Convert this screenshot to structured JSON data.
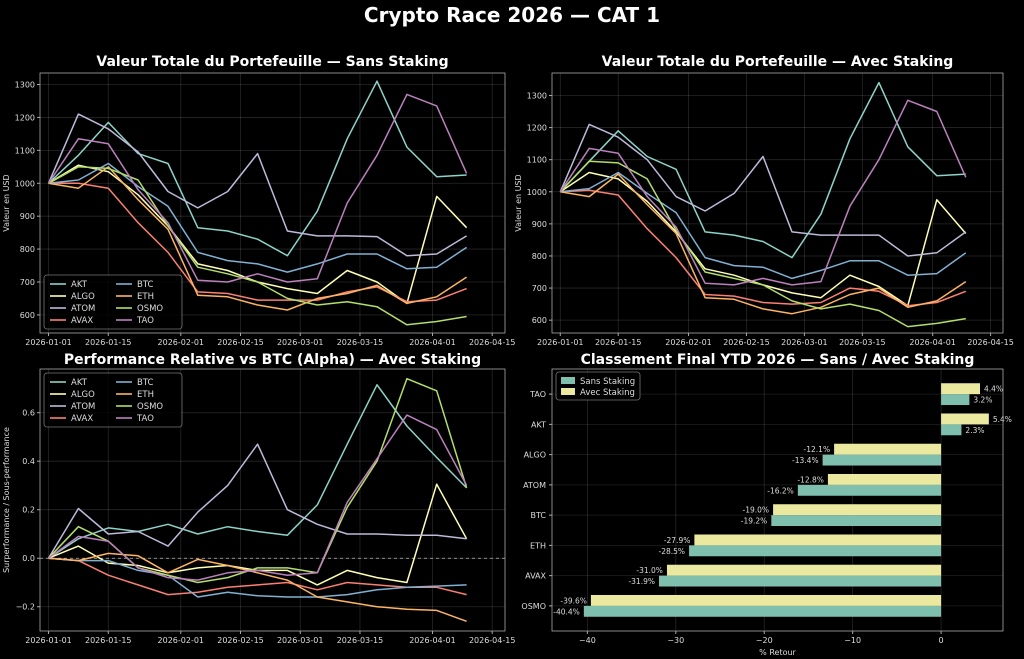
{
  "title": "Crypto Race 2026 — CAT 1",
  "chart_data": [
    {
      "type": "line",
      "title": "Valeur Totale du Portefeuille — Sans Staking",
      "ylabel": "Valeur en USD",
      "xlabel": "",
      "xlim": [
        "2025-12-30",
        "2026-04-18"
      ],
      "ylim": [
        545,
        1335
      ],
      "x_ticks": [
        "2026-01-01",
        "2026-01-15",
        "2026-02-01",
        "2026-02-15",
        "2026-03-01",
        "2026-03-15",
        "2026-04-01",
        "2026-04-15"
      ],
      "y_ticks": [
        600,
        700,
        800,
        900,
        1000,
        1100,
        1200,
        1300
      ],
      "zero_line": false,
      "grid": true,
      "legend": "lower-left",
      "legend_columns": 2,
      "x": [
        "2026-01-01",
        "2026-01-08",
        "2026-01-15",
        "2026-01-22",
        "2026-01-29",
        "2026-02-05",
        "2026-02-12",
        "2026-02-19",
        "2026-02-26",
        "2026-03-05",
        "2026-03-12",
        "2026-03-19",
        "2026-03-26",
        "2026-04-02",
        "2026-04-09",
        "2026-04-16"
      ],
      "series": [
        {
          "name": "AKT",
          "color": "#8dd3c7",
          "values": [
            1000,
            1085,
            1185,
            1090,
            1060,
            865,
            855,
            830,
            780,
            915,
            1135,
            1310,
            1110,
            1020,
            1025,
            null
          ]
        },
        {
          "name": "ALGO",
          "color": "#ffffb3",
          "values": [
            1000,
            1055,
            1035,
            965,
            870,
            755,
            735,
            700,
            680,
            665,
            735,
            700,
            635,
            960,
            865,
            null
          ]
        },
        {
          "name": "ATOM",
          "color": "#bebada",
          "values": [
            1000,
            1210,
            1165,
            1095,
            975,
            925,
            975,
            1090,
            855,
            840,
            840,
            838,
            780,
            785,
            840,
            null
          ]
        },
        {
          "name": "AVAX",
          "color": "#fb8072",
          "values": [
            1000,
            1000,
            985,
            880,
            790,
            670,
            665,
            645,
            645,
            645,
            670,
            685,
            640,
            645,
            680,
            null
          ]
        },
        {
          "name": "BTC",
          "color": "#80b1d3",
          "values": [
            1000,
            1010,
            1060,
            990,
            930,
            790,
            765,
            755,
            730,
            755,
            785,
            785,
            740,
            745,
            805,
            null
          ]
        },
        {
          "name": "ETH",
          "color": "#fdb462",
          "values": [
            1000,
            985,
            1050,
            950,
            860,
            660,
            655,
            630,
            615,
            650,
            665,
            690,
            635,
            655,
            715,
            null
          ]
        },
        {
          "name": "OSMO",
          "color": "#b3de69",
          "values": [
            1000,
            1050,
            1045,
            1010,
            870,
            745,
            725,
            700,
            650,
            630,
            640,
            625,
            570,
            580,
            595,
            null
          ]
        },
        {
          "name": "TAO",
          "color": "#bc80bd",
          "values": [
            1000,
            1135,
            1120,
            980,
            880,
            705,
            700,
            725,
            700,
            710,
            940,
            1085,
            1270,
            1235,
            1030,
            null
          ]
        }
      ]
    },
    {
      "type": "line",
      "title": "Valeur Totale du Portefeuille — Avec Staking",
      "ylabel": "Valeur en USD",
      "xlabel": "",
      "xlim": [
        "2025-12-30",
        "2026-04-18"
      ],
      "ylim": [
        560,
        1370
      ],
      "x_ticks": [
        "2026-01-01",
        "2026-01-15",
        "2026-02-01",
        "2026-02-15",
        "2026-03-01",
        "2026-03-15",
        "2026-04-01",
        "2026-04-15"
      ],
      "y_ticks": [
        600,
        700,
        800,
        900,
        1000,
        1100,
        1200,
        1300
      ],
      "zero_line": false,
      "grid": true,
      "legend": "none",
      "legend_columns": 2,
      "x": [
        "2026-01-01",
        "2026-01-08",
        "2026-01-15",
        "2026-01-22",
        "2026-01-29",
        "2026-02-05",
        "2026-02-12",
        "2026-02-19",
        "2026-02-26",
        "2026-03-05",
        "2026-03-12",
        "2026-03-19",
        "2026-03-26",
        "2026-04-02",
        "2026-04-09",
        "2026-04-16"
      ],
      "series": [
        {
          "name": "AKT",
          "color": "#8dd3c7",
          "values": [
            1000,
            1095,
            1190,
            1110,
            1070,
            875,
            865,
            845,
            795,
            930,
            1165,
            1340,
            1140,
            1050,
            1055,
            null
          ]
        },
        {
          "name": "ALGO",
          "color": "#ffffb3",
          "values": [
            1000,
            1060,
            1040,
            970,
            875,
            760,
            740,
            710,
            685,
            670,
            740,
            705,
            645,
            975,
            870,
            null
          ]
        },
        {
          "name": "ATOM",
          "color": "#bebada",
          "values": [
            1000,
            1210,
            1170,
            1100,
            985,
            940,
            995,
            1110,
            875,
            865,
            865,
            865,
            800,
            810,
            875,
            null
          ]
        },
        {
          "name": "AVAX",
          "color": "#fb8072",
          "values": [
            1000,
            1005,
            990,
            885,
            795,
            680,
            675,
            655,
            650,
            655,
            700,
            690,
            645,
            655,
            690,
            null
          ]
        },
        {
          "name": "BTC",
          "color": "#80b1d3",
          "values": [
            1000,
            1010,
            1060,
            995,
            935,
            795,
            770,
            765,
            730,
            755,
            785,
            785,
            740,
            745,
            810,
            null
          ]
        },
        {
          "name": "ETH",
          "color": "#fdb462",
          "values": [
            1000,
            985,
            1055,
            960,
            870,
            670,
            665,
            635,
            620,
            640,
            680,
            700,
            640,
            660,
            720,
            null
          ]
        },
        {
          "name": "OSMO",
          "color": "#b3de69",
          "values": [
            1000,
            1095,
            1090,
            1040,
            880,
            750,
            730,
            710,
            660,
            635,
            650,
            630,
            580,
            590,
            605,
            null
          ]
        },
        {
          "name": "TAO",
          "color": "#bc80bd",
          "values": [
            1000,
            1135,
            1120,
            985,
            890,
            715,
            710,
            730,
            710,
            720,
            955,
            1100,
            1285,
            1250,
            1045,
            null
          ]
        }
      ]
    },
    {
      "type": "line",
      "title": "Performance Relative vs BTC (Alpha) — Avec Staking",
      "ylabel": "Surperformance / Sous-performance",
      "xlabel": "",
      "xlim": [
        "2025-12-30",
        "2026-04-18"
      ],
      "ylim": [
        -0.3,
        0.78
      ],
      "x_ticks": [
        "2026-01-01",
        "2026-01-15",
        "2026-02-01",
        "2026-02-15",
        "2026-03-01",
        "2026-03-15",
        "2026-04-01",
        "2026-04-15"
      ],
      "y_ticks": [
        -0.2,
        0.0,
        0.2,
        0.4,
        0.6
      ],
      "y_tick_labels": [
        "−0.2",
        "0.0",
        "0.2",
        "0.4",
        "0.6"
      ],
      "zero_line": true,
      "grid": true,
      "legend": "upper-left",
      "legend_columns": 2,
      "x": [
        "2026-01-01",
        "2026-01-08",
        "2026-01-15",
        "2026-01-22",
        "2026-01-29",
        "2026-02-05",
        "2026-02-12",
        "2026-02-19",
        "2026-02-26",
        "2026-03-05",
        "2026-03-12",
        "2026-03-19",
        "2026-03-26",
        "2026-04-02",
        "2026-04-09",
        "2026-04-16"
      ],
      "series": [
        {
          "name": "AKT",
          "color": "#8dd3c7",
          "values": [
            0,
            0.08,
            0.125,
            0.11,
            0.14,
            0.1,
            0.13,
            0.11,
            0.095,
            0.22,
            0.47,
            0.715,
            0.545,
            0.415,
            0.29,
            null
          ]
        },
        {
          "name": "ALGO",
          "color": "#ffffb3",
          "values": [
            0,
            0.05,
            -0.02,
            -0.03,
            -0.06,
            -0.04,
            -0.03,
            -0.05,
            -0.05,
            -0.11,
            -0.05,
            -0.08,
            -0.1,
            0.305,
            0.08,
            null
          ]
        },
        {
          "name": "ATOM",
          "color": "#bebada",
          "values": [
            0,
            0.205,
            0.1,
            0.11,
            0.05,
            0.19,
            0.3,
            0.47,
            0.2,
            0.14,
            0.1,
            0.1,
            0.095,
            0.095,
            0.08,
            null
          ]
        },
        {
          "name": "AVAX",
          "color": "#fb8072",
          "values": [
            0,
            -0.01,
            -0.07,
            -0.11,
            -0.15,
            -0.14,
            -0.12,
            -0.11,
            -0.1,
            -0.13,
            -0.1,
            -0.11,
            -0.12,
            -0.12,
            -0.15,
            null
          ]
        },
        {
          "name": "BTC",
          "color": "#80b1d3",
          "values": [
            0,
            -0.01,
            -0.01,
            -0.05,
            -0.07,
            -0.16,
            -0.14,
            -0.155,
            -0.16,
            -0.16,
            -0.15,
            -0.13,
            -0.12,
            -0.115,
            -0.11,
            null
          ]
        },
        {
          "name": "ETH",
          "color": "#fdb462",
          "values": [
            0,
            -0.01,
            0.02,
            0.01,
            -0.06,
            -0.005,
            -0.03,
            -0.06,
            -0.09,
            -0.16,
            -0.18,
            -0.2,
            -0.21,
            -0.215,
            -0.26,
            null
          ]
        },
        {
          "name": "OSMO",
          "color": "#b3de69",
          "values": [
            0,
            0.13,
            0.07,
            -0.04,
            -0.07,
            -0.1,
            -0.08,
            -0.04,
            -0.04,
            -0.06,
            0.21,
            0.4,
            0.74,
            0.69,
            0.29,
            null
          ]
        },
        {
          "name": "TAO",
          "color": "#bc80bd",
          "values": [
            0,
            0.09,
            0.07,
            -0.04,
            -0.08,
            -0.09,
            -0.06,
            -0.05,
            -0.07,
            -0.06,
            0.23,
            0.41,
            0.59,
            0.53,
            0.3,
            null
          ]
        }
      ]
    },
    {
      "type": "bar",
      "orientation": "horizontal",
      "title": "Classement Final YTD 2026 — Sans / Avec Staking",
      "xlabel": "% Retour",
      "ylabel": "",
      "xlim": [
        -44,
        7
      ],
      "x_ticks": [
        -40,
        -30,
        -20,
        -10,
        0
      ],
      "x_tick_labels": [
        "−40",
        "−30",
        "−20",
        "−10",
        "0"
      ],
      "grid": true,
      "legend": "upper-left",
      "categories": [
        "TAO",
        "AKT",
        "ALGO",
        "ATOM",
        "BTC",
        "ETH",
        "AVAX",
        "OSMO"
      ],
      "series": [
        {
          "name": "Sans Staking",
          "color": "#7fbfae",
          "values": [
            3.2,
            2.3,
            -13.4,
            -16.2,
            -19.2,
            -28.5,
            -31.9,
            -40.4
          ],
          "labels": [
            "3.2%",
            "2.3%",
            "-13.4%",
            "-16.2%",
            "-19.2%",
            "-28.5%",
            "-31.9%",
            "-40.4%"
          ]
        },
        {
          "name": "Avec Staking",
          "color": "#ebe9a0",
          "values": [
            4.4,
            5.4,
            -12.1,
            -12.8,
            -19.0,
            -27.9,
            -31.0,
            -39.6
          ],
          "labels": [
            "4.4%",
            "5.4%",
            "-12.1%",
            "-12.8%",
            "-19.0%",
            "-27.9%",
            "-31.0%",
            "-39.6%"
          ]
        }
      ]
    }
  ]
}
